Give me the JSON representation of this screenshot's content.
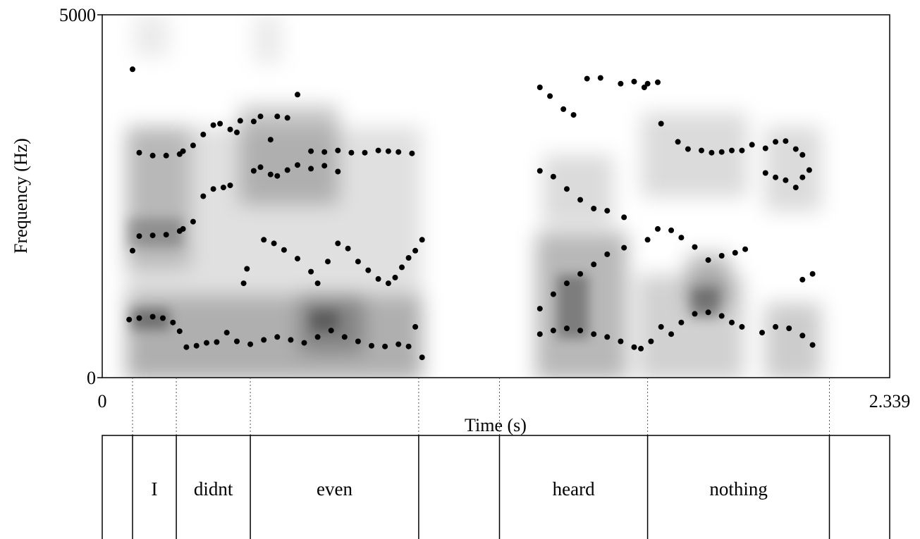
{
  "chart_data": {
    "type": "scatter",
    "title": "",
    "xlabel": "Time (s)",
    "ylabel": "Frequency (Hz)",
    "xlim": [
      0,
      2.339
    ],
    "ylim": [
      0,
      5000
    ],
    "x_tick_labels": [
      "0",
      "2.339"
    ],
    "y_tick_labels": [
      "0",
      "5000"
    ],
    "grid": false,
    "background": "spectrogram (grayscale)",
    "marker_color": "#000000",
    "series": [
      {
        "points": [
          [
            0.09,
            4250
          ],
          [
            0.11,
            3100
          ],
          [
            0.15,
            3060
          ],
          [
            0.19,
            3060
          ],
          [
            0.23,
            3080
          ],
          [
            0.24,
            3120
          ],
          [
            0.27,
            3200
          ],
          [
            0.3,
            3350
          ],
          [
            0.33,
            3480
          ],
          [
            0.35,
            3500
          ],
          [
            0.38,
            3420
          ],
          [
            0.41,
            3540
          ],
          [
            0.45,
            3530
          ],
          [
            0.47,
            3600
          ],
          [
            0.5,
            3280
          ],
          [
            0.52,
            3600
          ],
          [
            0.55,
            3580
          ],
          [
            0.58,
            3900
          ],
          [
            0.62,
            3120
          ],
          [
            0.66,
            3110
          ],
          [
            0.7,
            3130
          ],
          [
            0.74,
            3100
          ],
          [
            0.78,
            3100
          ],
          [
            0.82,
            3130
          ],
          [
            0.85,
            3120
          ],
          [
            0.88,
            3110
          ],
          [
            0.92,
            3090
          ],
          [
            1.3,
            4000
          ],
          [
            1.33,
            3880
          ],
          [
            1.37,
            3700
          ],
          [
            1.4,
            3620
          ],
          [
            1.44,
            4120
          ],
          [
            1.48,
            4130
          ],
          [
            1.54,
            4050
          ],
          [
            1.58,
            4080
          ],
          [
            1.62,
            4050
          ],
          [
            1.65,
            4070
          ],
          [
            1.61,
            4000
          ],
          [
            1.66,
            3500
          ],
          [
            1.71,
            3250
          ],
          [
            1.74,
            3150
          ],
          [
            1.78,
            3130
          ],
          [
            1.81,
            3100
          ],
          [
            1.84,
            3110
          ],
          [
            1.87,
            3130
          ],
          [
            1.9,
            3130
          ],
          [
            1.93,
            3210
          ],
          [
            1.97,
            3160
          ],
          [
            2.0,
            3250
          ],
          [
            2.03,
            3260
          ],
          [
            2.06,
            3150
          ],
          [
            2.08,
            3070
          ]
        ]
      },
      {
        "points": [
          [
            0.09,
            1750
          ],
          [
            0.11,
            1950
          ],
          [
            0.15,
            1960
          ],
          [
            0.19,
            1970
          ],
          [
            0.23,
            2020
          ],
          [
            0.24,
            2050
          ],
          [
            0.27,
            2150
          ],
          [
            0.3,
            2500
          ],
          [
            0.33,
            2600
          ],
          [
            0.36,
            2620
          ],
          [
            0.38,
            2650
          ],
          [
            0.4,
            3380
          ],
          [
            0.45,
            2850
          ],
          [
            0.47,
            2900
          ],
          [
            0.5,
            2800
          ],
          [
            0.52,
            2780
          ],
          [
            0.55,
            2860
          ],
          [
            0.58,
            2930
          ],
          [
            0.62,
            2880
          ],
          [
            0.66,
            2920
          ],
          [
            0.7,
            2840
          ],
          [
            1.3,
            2850
          ],
          [
            1.34,
            2770
          ],
          [
            1.38,
            2600
          ],
          [
            1.42,
            2450
          ],
          [
            1.46,
            2330
          ],
          [
            1.5,
            2300
          ],
          [
            1.55,
            2210
          ],
          [
            1.62,
            1900
          ],
          [
            1.65,
            2050
          ],
          [
            1.69,
            2030
          ],
          [
            1.72,
            1930
          ],
          [
            1.76,
            1800
          ],
          [
            1.8,
            1620
          ],
          [
            1.84,
            1680
          ],
          [
            1.88,
            1720
          ],
          [
            1.91,
            1770
          ],
          [
            1.97,
            2820
          ],
          [
            2.0,
            2760
          ],
          [
            2.03,
            2720
          ],
          [
            2.06,
            2620
          ],
          [
            2.08,
            2760
          ],
          [
            2.1,
            2860
          ]
        ]
      },
      {
        "points": [
          [
            0.48,
            1900
          ],
          [
            0.51,
            1850
          ],
          [
            0.54,
            1760
          ],
          [
            0.58,
            1640
          ],
          [
            0.62,
            1460
          ],
          [
            0.64,
            1300
          ],
          [
            0.67,
            1600
          ],
          [
            0.7,
            1850
          ],
          [
            0.73,
            1780
          ],
          [
            0.76,
            1600
          ],
          [
            0.79,
            1480
          ],
          [
            0.82,
            1360
          ],
          [
            0.85,
            1300
          ],
          [
            0.87,
            1380
          ],
          [
            0.89,
            1520
          ],
          [
            0.91,
            1650
          ],
          [
            0.93,
            1750
          ],
          [
            0.95,
            1900
          ],
          [
            1.3,
            950
          ],
          [
            1.34,
            1150
          ],
          [
            1.38,
            1300
          ],
          [
            1.42,
            1430
          ],
          [
            1.46,
            1560
          ],
          [
            1.5,
            1700
          ],
          [
            1.55,
            1790
          ],
          [
            0.42,
            1300
          ],
          [
            0.43,
            1500
          ],
          [
            2.08,
            1350
          ],
          [
            2.11,
            1430
          ]
        ]
      },
      {
        "points": [
          [
            0.08,
            800
          ],
          [
            0.11,
            820
          ],
          [
            0.15,
            840
          ],
          [
            0.18,
            820
          ],
          [
            0.21,
            760
          ],
          [
            0.23,
            640
          ],
          [
            0.25,
            420
          ],
          [
            0.28,
            440
          ],
          [
            0.31,
            480
          ],
          [
            0.34,
            490
          ],
          [
            0.37,
            620
          ],
          [
            0.4,
            500
          ],
          [
            0.44,
            460
          ],
          [
            0.48,
            520
          ],
          [
            0.52,
            560
          ],
          [
            0.56,
            520
          ],
          [
            0.6,
            480
          ],
          [
            0.64,
            560
          ],
          [
            0.68,
            650
          ],
          [
            0.72,
            560
          ],
          [
            0.76,
            500
          ],
          [
            0.8,
            440
          ],
          [
            0.84,
            430
          ],
          [
            0.88,
            460
          ],
          [
            0.91,
            430
          ],
          [
            0.93,
            700
          ],
          [
            0.95,
            280
          ],
          [
            1.3,
            600
          ],
          [
            1.34,
            650
          ],
          [
            1.38,
            680
          ],
          [
            1.42,
            650
          ],
          [
            1.46,
            600
          ],
          [
            1.5,
            560
          ],
          [
            1.54,
            500
          ],
          [
            1.58,
            420
          ],
          [
            1.6,
            400
          ],
          [
            1.63,
            500
          ],
          [
            1.66,
            700
          ],
          [
            1.69,
            600
          ],
          [
            1.72,
            760
          ],
          [
            1.76,
            880
          ],
          [
            1.8,
            900
          ],
          [
            1.84,
            850
          ],
          [
            1.87,
            760
          ],
          [
            1.9,
            700
          ],
          [
            1.96,
            620
          ],
          [
            2.0,
            700
          ],
          [
            2.04,
            680
          ],
          [
            2.08,
            580
          ],
          [
            2.11,
            450
          ]
        ]
      }
    ]
  },
  "tier": {
    "boundaries": [
      0.09,
      0.22,
      0.44,
      0.94,
      1.18,
      1.62,
      2.16
    ],
    "intervals": [
      {
        "start": 0,
        "end": 0.09,
        "label": ""
      },
      {
        "start": 0.09,
        "end": 0.22,
        "label": "I"
      },
      {
        "start": 0.22,
        "end": 0.44,
        "label": "didnt"
      },
      {
        "start": 0.44,
        "end": 0.94,
        "label": "even"
      },
      {
        "start": 0.94,
        "end": 1.18,
        "label": ""
      },
      {
        "start": 1.18,
        "end": 1.62,
        "label": "heard"
      },
      {
        "start": 1.62,
        "end": 2.16,
        "label": "nothing"
      },
      {
        "start": 2.16,
        "end": 2.339,
        "label": ""
      }
    ]
  }
}
